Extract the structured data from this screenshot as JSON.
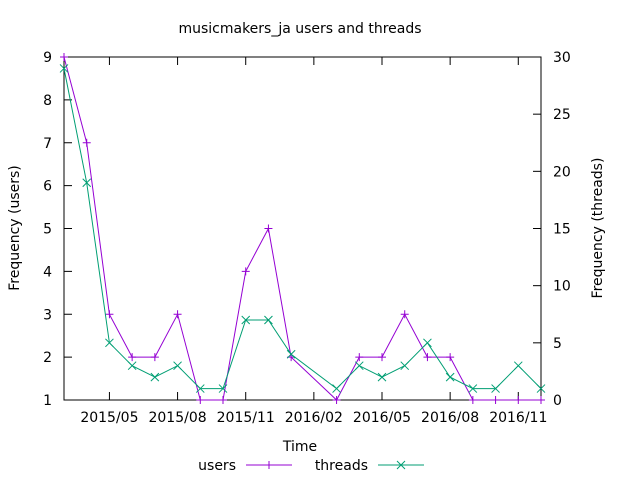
{
  "chart_data": {
    "type": "line",
    "title": "musicmakers_ja users and threads",
    "xlabel": "Time",
    "ylabel": "Frequency (users)",
    "y2label": "Frequency (threads)",
    "x": [
      "2015-03",
      "2015-04",
      "2015-05",
      "2015-06",
      "2015-07",
      "2015-08",
      "2015-09",
      "2015-10",
      "2015-11",
      "2015-12",
      "2016-01",
      "2016-02",
      "2016-03",
      "2016-04",
      "2016-05",
      "2016-06",
      "2016-07",
      "2016-08",
      "2016-09",
      "2016-10",
      "2016-11",
      "2016-12"
    ],
    "x_tick_labels": [
      "2015/05",
      "2015/08",
      "2015/11",
      "2016/02",
      "2016/05",
      "2016/08",
      "2016/11"
    ],
    "x_tick_dates": [
      "2015-05",
      "2015-08",
      "2015-11",
      "2016-02",
      "2016-05",
      "2016-08",
      "2016-11"
    ],
    "ylim": [
      1,
      9
    ],
    "y_ticks": [
      1,
      2,
      3,
      4,
      5,
      6,
      7,
      8,
      9
    ],
    "y2lim": [
      0,
      30
    ],
    "y2_ticks": [
      0,
      5,
      10,
      15,
      20,
      25,
      30
    ],
    "legend_placement": "bottom-center",
    "grid": false,
    "series": [
      {
        "name": "users",
        "axis": "y",
        "color": "#9400d3",
        "marker": "plus",
        "values": [
          9,
          7,
          3,
          2,
          2,
          3,
          1,
          1,
          4,
          5,
          2,
          null,
          1,
          2,
          2,
          3,
          2,
          2,
          1,
          1,
          1,
          1
        ]
      },
      {
        "name": "threads",
        "axis": "y2",
        "color": "#009e73",
        "marker": "cross",
        "values": [
          29,
          19,
          5,
          3,
          2,
          3,
          1,
          1,
          7,
          7,
          4,
          null,
          1,
          3,
          2,
          3,
          5,
          2,
          1,
          1,
          3,
          1
        ]
      }
    ]
  }
}
